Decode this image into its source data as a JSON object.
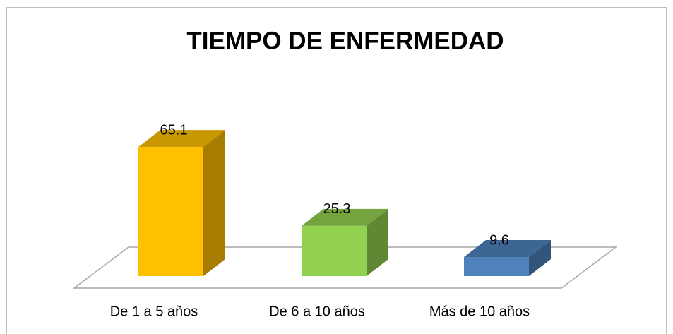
{
  "chart_data": {
    "type": "bar3d",
    "title": "TIEMPO DE ENFERMEDAD",
    "categories": [
      "De 1 a 5 años",
      "De 6 a 10 años",
      "Más de 10 años"
    ],
    "values": [
      65.1,
      25.3,
      9.6
    ],
    "colors": [
      "#FFC000",
      "#92D050",
      "#4F81BD"
    ]
  }
}
